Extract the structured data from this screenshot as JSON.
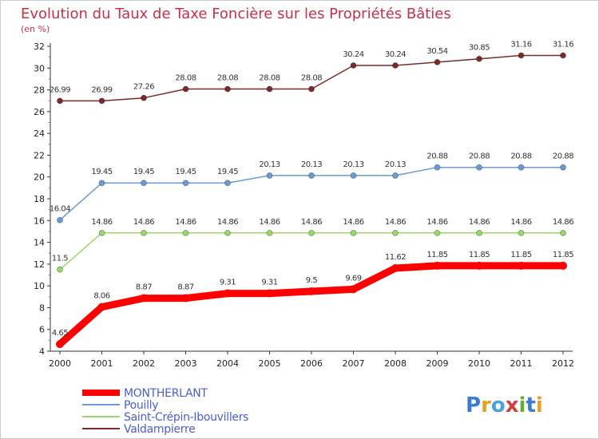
{
  "chart_data": {
    "type": "line",
    "title": "Evolution du Taux de Taxe Foncière sur les Propriétés Bâties",
    "subtitle": "(en %)",
    "xlabel": "",
    "ylabel": "",
    "ylim": [
      4,
      32
    ],
    "yticks": [
      4,
      6,
      8,
      10,
      12,
      14,
      16,
      18,
      20,
      22,
      24,
      26,
      28,
      30,
      32
    ],
    "categories": [
      "2000",
      "2001",
      "2002",
      "2003",
      "2004",
      "2005",
      "2006",
      "2007",
      "2008",
      "2009",
      "2010",
      "2011",
      "2012"
    ],
    "series": [
      {
        "name": "MONTHERLANT",
        "color": "#ff0000",
        "values": [
          4.65,
          8.06,
          8.87,
          8.87,
          9.31,
          9.31,
          9.5,
          9.69,
          11.62,
          11.85,
          11.85,
          11.85,
          11.85
        ],
        "labels": [
          "4.65",
          "8.06",
          "8.87",
          "8.87",
          "9.31",
          "9.31",
          "9.5",
          "9.69",
          "11.62",
          "11.85",
          "11.85",
          "11.85",
          "11.85"
        ]
      },
      {
        "name": "Pouilly",
        "color": "#6a9bd3",
        "values": [
          16.04,
          19.45,
          19.45,
          19.45,
          19.45,
          20.13,
          20.13,
          20.13,
          20.13,
          20.88,
          20.88,
          20.88,
          20.88
        ],
        "labels": [
          "16.04",
          "19.45",
          "19.45",
          "19.45",
          "19.45",
          "20.13",
          "20.13",
          "20.13",
          "20.13",
          "20.88",
          "20.88",
          "20.88",
          "20.88"
        ]
      },
      {
        "name": "Saint-Crépin-Ibouvillers",
        "color": "#9ad86a",
        "values": [
          11.5,
          14.86,
          14.86,
          14.86,
          14.86,
          14.86,
          14.86,
          14.86,
          14.86,
          14.86,
          14.86,
          14.86,
          14.86
        ],
        "labels": [
          "11.5",
          "14.86",
          "14.86",
          "14.86",
          "14.86",
          "14.86",
          "14.86",
          "14.86",
          "14.86",
          "14.86",
          "14.86",
          "14.86",
          "14.86"
        ]
      },
      {
        "name": "Valdampierre",
        "color": "#7a2a2a",
        "values": [
          26.99,
          26.99,
          27.26,
          28.08,
          28.08,
          28.08,
          28.08,
          30.24,
          30.24,
          30.54,
          30.85,
          31.16,
          31.16
        ],
        "labels": [
          "26.99",
          "26.99",
          "27.26",
          "28.08",
          "28.08",
          "28.08",
          "28.08",
          "30.24",
          "30.24",
          "30.54",
          "30.85",
          "31.16",
          "31.16"
        ]
      }
    ],
    "legend": "bottom-left",
    "grid": false
  },
  "logo": {
    "text": "Proxiti",
    "letters": [
      "P",
      "r",
      "o",
      "x",
      "i",
      "t",
      "i"
    ],
    "colors": [
      "#3a7bd5",
      "#e8a020",
      "#4aa0e0",
      "#d04040",
      "#60b030",
      "#3a7bd5",
      "#e8a020"
    ]
  }
}
